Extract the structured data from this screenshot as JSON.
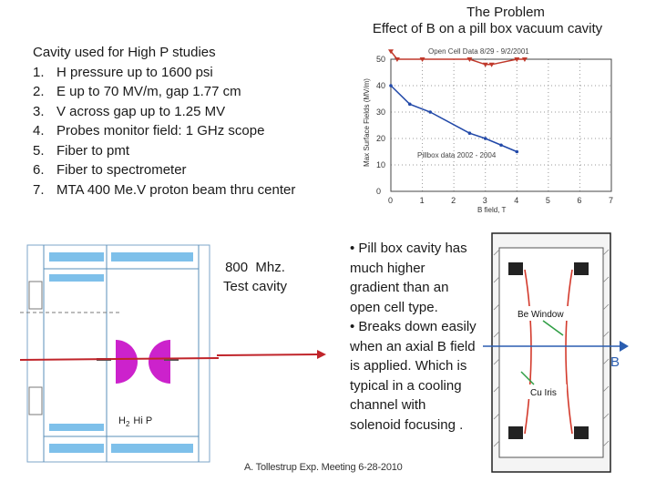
{
  "header": {
    "title": "The Problem",
    "subtitle": "Effect of B on a pill box vacuum cavity"
  },
  "specs": {
    "heading": "Cavity used for High P studies",
    "items": [
      {
        "num": "1.",
        "text": "H pressure up to  1600 psi"
      },
      {
        "num": "2.",
        "text": "E  up to 70 MV/m, gap 1.77 cm"
      },
      {
        "num": "3.",
        "text": "V across gap up to 1.25 MV"
      },
      {
        "num": "4.",
        "text": "Probes monitor field: 1 GHz scope"
      },
      {
        "num": "5.",
        "text": "Fiber to pmt"
      },
      {
        "num": "6.",
        "text": "Fiber to spectrometer"
      },
      {
        "num": "7.",
        "text": "MTA 400 Me.V proton beam thru center"
      }
    ]
  },
  "chart_data": {
    "type": "line",
    "xlabel": "B field, T",
    "ylabel": "Max Surface Fields (MV/m)",
    "xlim": [
      0,
      7
    ],
    "ylim": [
      0,
      50
    ],
    "xticks": [
      "0",
      "1",
      "2",
      "3",
      "4",
      "5",
      "6",
      "7"
    ],
    "yticks": [
      "0",
      "10",
      "20",
      "30",
      "40",
      "50"
    ],
    "series": [
      {
        "name": "Open Cell Data 8/29 - 9/2/2001",
        "color": "#c0392b",
        "x": [
          0,
          0.2,
          1.0,
          2.5,
          3.0,
          3.2,
          4.0,
          4.25
        ],
        "y": [
          53,
          50,
          50,
          50,
          48,
          48,
          50,
          50
        ]
      },
      {
        "name": "Pillbox data 2002 - 2004",
        "color": "#2148a8",
        "x": [
          0,
          0.6,
          1.25,
          2.5,
          3.0,
          3.5,
          4.0
        ],
        "y": [
          40,
          33,
          30,
          22,
          20,
          17.5,
          15
        ]
      }
    ]
  },
  "cavity_diagram": {
    "caption": "800  Mhz.\nTest cavity",
    "gas_label": "H",
    "gas_sub": "2",
    "gas_suffix": "Hi P"
  },
  "pillbox_diagram": {
    "window_label": "Be Window",
    "iris_label": "Cu Iris",
    "field_label": "B"
  },
  "bullets": [
    "• Pill box cavity has much higher gradient than an open cell type.",
    "• Breaks down easily when an axial B field is applied.   Which is typical in a cooling channel with solenoid focusing ."
  ],
  "footer": "A. Tollestrup Exp. Meeting 6-28-2010",
  "colors": {
    "beam": "#c0242a",
    "coupler": "#cc22cc",
    "window_line": "#d33a2c",
    "field_arrow": "#2a5db0"
  }
}
